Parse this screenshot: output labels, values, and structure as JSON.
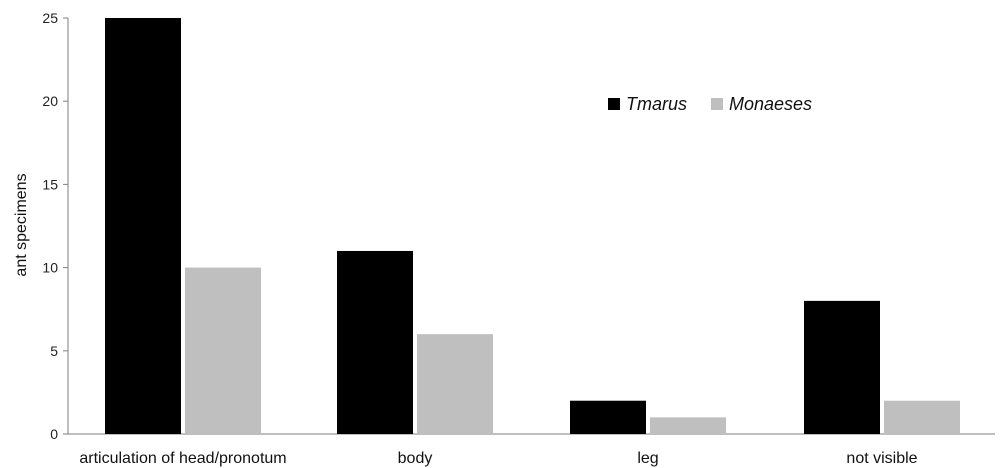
{
  "chart_data": {
    "type": "bar",
    "title": "",
    "xlabel": "",
    "ylabel": "ant specimens",
    "ylim": [
      0,
      25
    ],
    "yticks": [
      0,
      5,
      10,
      15,
      20,
      25
    ],
    "categories": [
      "articulation of head/pronotum",
      "body",
      "leg",
      "not visible"
    ],
    "series": [
      {
        "name": "Tmarus",
        "color": "#000000",
        "values": [
          25,
          11,
          2,
          8
        ]
      },
      {
        "name": "Monaeses",
        "color": "#bfbfbf",
        "values": [
          10,
          6,
          1,
          2
        ]
      }
    ],
    "grid": false,
    "legend": "top-center-right"
  }
}
